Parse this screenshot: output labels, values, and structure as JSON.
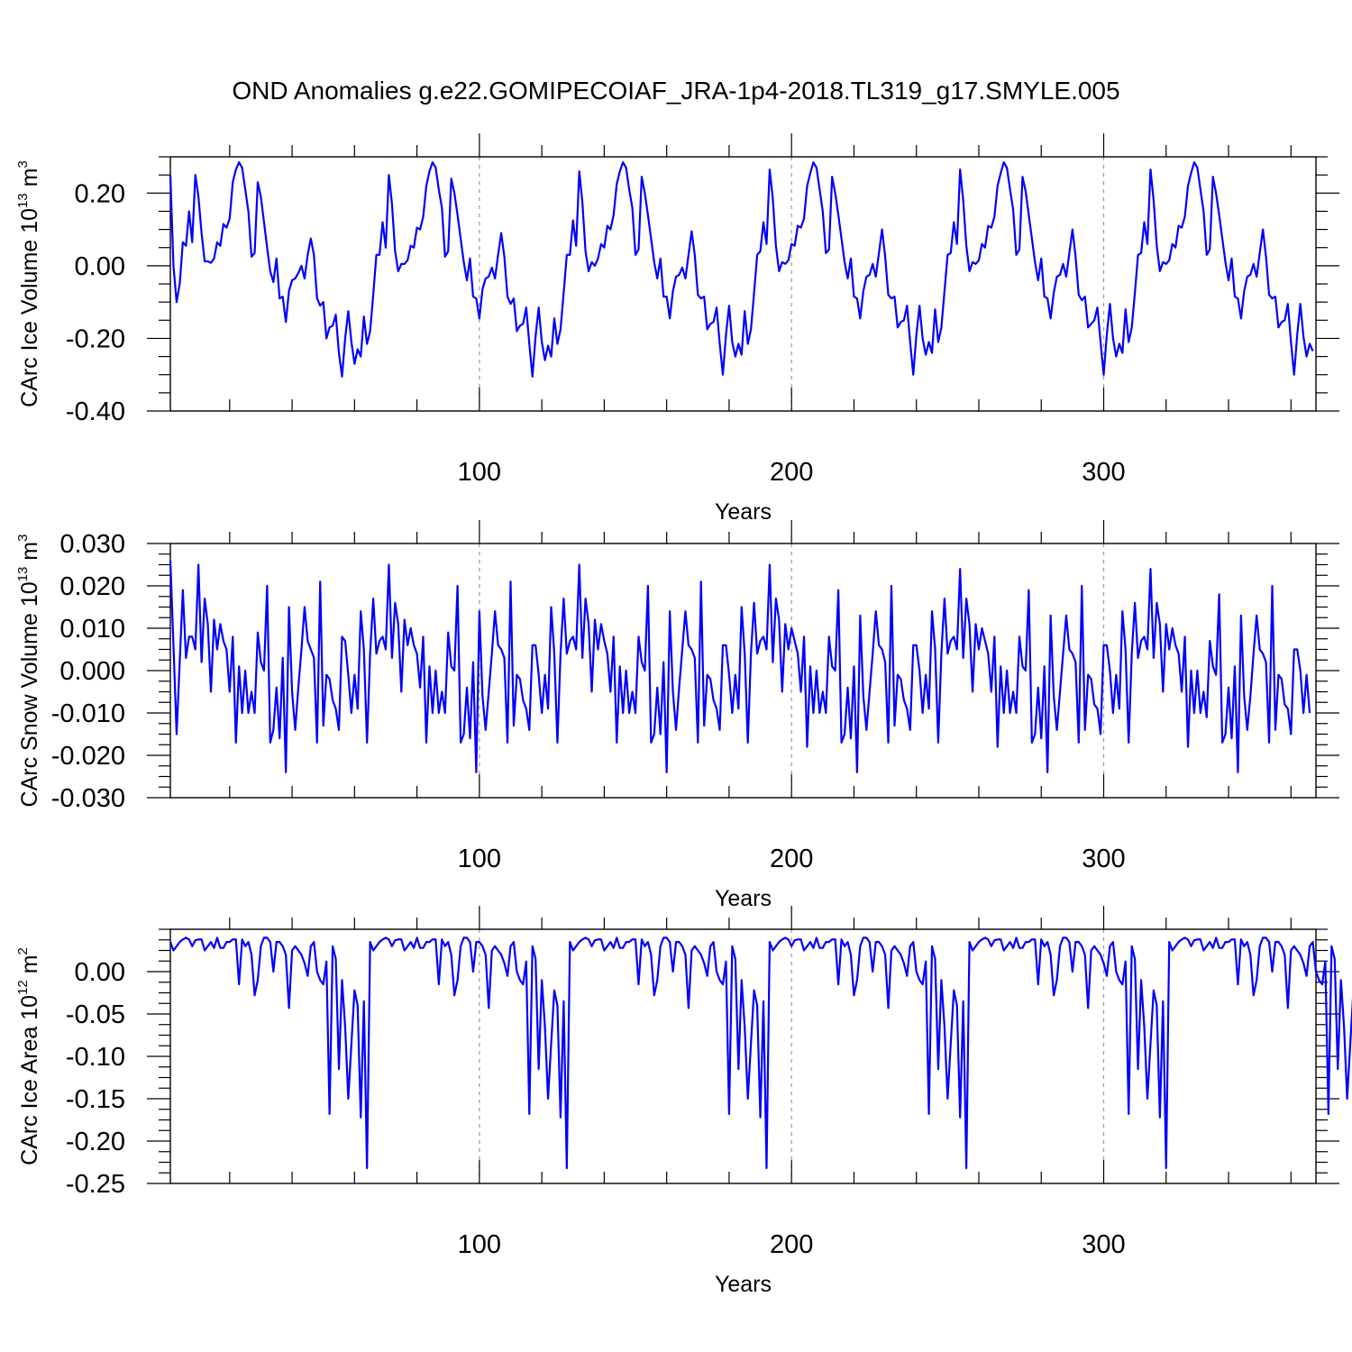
{
  "title": "OND Anomalies g.e22.GOMIPECOIAF_JRA-1p4-2018.TL319_g17.SMYLE.005",
  "colors": {
    "series": "#0000ff",
    "grid": "#999999",
    "axis": "#000000"
  },
  "chart_data": [
    {
      "type": "line",
      "name": "ice-volume",
      "ylabel_main": "CArc Ice Volume 10",
      "ylabel_sup": "13",
      "ylabel_tail": " m",
      "ylabel_sup2": "3",
      "xlabel": "Years",
      "xlim": [
        1,
        368
      ],
      "ylim": [
        -0.4,
        0.3
      ],
      "yticks": [
        -0.4,
        -0.2,
        0.0,
        0.2
      ],
      "yticklabels": [
        "-0.40",
        "-0.20",
        "0.00",
        "0.20"
      ],
      "yminor": 0.05,
      "xticks": [
        100,
        200,
        300
      ],
      "xticklabels": [
        "100",
        "200",
        "300"
      ],
      "xminor": 20,
      "grid_x": [
        100,
        200,
        300
      ],
      "values": [
        0.25,
        0.0,
        -0.1,
        -0.05,
        0.065,
        0.055,
        0.15,
        0.065,
        0.25,
        0.19,
        0.09,
        0.012,
        0.012,
        0.008,
        0.02,
        0.065,
        0.055,
        0.115,
        0.105,
        0.13,
        0.23,
        0.265,
        0.285,
        0.27,
        0.21,
        0.15,
        0.025,
        0.035,
        0.23,
        0.19,
        0.12,
        0.05,
        -0.015,
        -0.045,
        0.02,
        -0.09,
        -0.085,
        -0.155,
        -0.07,
        -0.04,
        -0.035,
        -0.02,
        0.0,
        -0.035,
        0.03,
        0.075,
        0.03,
        -0.09,
        -0.11,
        -0.1,
        -0.2,
        -0.17,
        -0.165,
        -0.135,
        -0.24,
        -0.305,
        -0.2,
        -0.125,
        -0.21,
        -0.27,
        -0.23,
        -0.25,
        -0.14,
        -0.215,
        -0.18,
        -0.08,
        0.03,
        0.03,
        0.12,
        0.05,
        0.25,
        0.17,
        0.04,
        -0.015,
        0.005,
        0.005,
        0.015,
        0.055,
        0.05,
        0.105,
        0.1,
        0.135,
        0.22,
        0.26,
        0.285,
        0.27,
        0.21,
        0.16,
        0.025,
        0.04,
        0.24,
        0.2,
        0.14,
        0.075,
        0.01,
        -0.04,
        0.02,
        -0.085,
        -0.09,
        -0.145,
        -0.065,
        -0.035,
        -0.03,
        -0.005,
        -0.035,
        0.03,
        0.09,
        0.025,
        -0.085,
        -0.105,
        -0.09,
        -0.18,
        -0.165,
        -0.16,
        -0.115,
        -0.215,
        -0.305,
        -0.195,
        -0.115,
        -0.21,
        -0.26,
        -0.22,
        -0.25,
        -0.145,
        -0.215,
        -0.175,
        -0.075,
        0.03,
        0.03,
        0.125,
        0.055,
        0.26,
        0.175,
        0.04,
        -0.015,
        0.01,
        0.0,
        0.02,
        0.06,
        0.05,
        0.11,
        0.1,
        0.14,
        0.225,
        0.26,
        0.285,
        0.27,
        0.21,
        0.16,
        0.03,
        0.045,
        0.245,
        0.2,
        0.14,
        0.075,
        0.01,
        -0.035,
        0.02,
        -0.085,
        -0.085,
        -0.145,
        -0.07,
        -0.03,
        -0.025,
        -0.005,
        -0.035,
        0.03,
        0.095,
        0.03,
        -0.08,
        -0.09,
        -0.085,
        -0.175,
        -0.16,
        -0.155,
        -0.115,
        -0.215,
        -0.3,
        -0.19,
        -0.11,
        -0.21,
        -0.25,
        -0.215,
        -0.245,
        -0.125,
        -0.215,
        -0.175,
        -0.075,
        0.03,
        0.04,
        0.12,
        0.06,
        0.265,
        0.185,
        0.055,
        -0.015,
        0.01,
        0.005,
        0.015,
        0.06,
        0.055,
        0.11,
        0.105,
        0.13,
        0.22,
        0.255,
        0.285,
        0.27,
        0.21,
        0.15,
        0.035,
        0.045,
        0.245,
        0.2,
        0.14,
        0.075,
        0.01,
        -0.035,
        0.02,
        -0.085,
        -0.09,
        -0.145,
        -0.07,
        -0.03,
        -0.025,
        0.005,
        -0.03,
        0.035,
        0.1,
        0.025,
        -0.08,
        -0.09,
        -0.085,
        -0.17,
        -0.155,
        -0.15,
        -0.11,
        -0.21,
        -0.3,
        -0.19,
        -0.11,
        -0.2,
        -0.245,
        -0.21,
        -0.24,
        -0.12,
        -0.21,
        -0.17,
        -0.07,
        0.03,
        0.035,
        0.12,
        0.06,
        0.265,
        0.18,
        0.055,
        -0.015,
        0.01,
        0.005,
        0.015,
        0.06,
        0.05,
        0.11,
        0.105,
        0.135,
        0.22,
        0.255,
        0.285,
        0.27,
        0.21,
        0.155,
        0.03,
        0.045,
        0.245,
        0.205,
        0.14,
        0.075,
        0.01,
        -0.04,
        0.02,
        -0.085,
        -0.09,
        -0.145,
        -0.075,
        -0.03,
        -0.025,
        0.005,
        -0.03,
        0.035,
        0.1,
        0.025,
        -0.08,
        -0.095,
        -0.085,
        -0.17,
        -0.16,
        -0.15,
        -0.115,
        -0.21,
        -0.3,
        -0.19,
        -0.105,
        -0.2,
        -0.25,
        -0.215,
        -0.24,
        -0.12,
        -0.21,
        -0.17,
        -0.075,
        0.03,
        0.035,
        0.12,
        0.06,
        0.265,
        0.18,
        0.055,
        -0.015,
        0.01,
        0.005,
        0.015,
        0.06,
        0.05,
        0.11,
        0.105,
        0.135,
        0.22,
        0.255,
        0.285,
        0.27,
        0.21,
        0.15,
        0.03,
        0.045,
        0.245,
        0.2,
        0.14,
        0.075,
        0.01,
        -0.04,
        0.02,
        -0.085,
        -0.09,
        -0.145,
        -0.07,
        -0.03,
        -0.025,
        0.005,
        -0.03,
        0.035,
        0.1,
        0.025,
        -0.08,
        -0.09,
        -0.085,
        -0.17,
        -0.155,
        -0.15,
        -0.105,
        -0.21,
        -0.3,
        -0.19,
        -0.105,
        -0.195,
        -0.25,
        -0.215,
        -0.235
      ]
    },
    {
      "type": "line",
      "name": "snow-volume",
      "ylabel_main": "CArc Snow Volume 10",
      "ylabel_sup": "13",
      "ylabel_tail": " m",
      "ylabel_sup2": "3",
      "xlabel": "Years",
      "xlim": [
        1,
        368
      ],
      "ylim": [
        -0.03,
        0.03
      ],
      "yticks": [
        -0.03,
        -0.02,
        -0.01,
        0.0,
        0.01,
        0.02,
        0.03
      ],
      "yticklabels": [
        "-0.030",
        "-0.020",
        "-0.010",
        "0.000",
        "0.010",
        "0.020",
        "0.030"
      ],
      "yminor": 0.0025,
      "xticks": [
        100,
        200,
        300
      ],
      "xticklabels": [
        "100",
        "200",
        "300"
      ],
      "xminor": 20,
      "grid_x": [
        100,
        200,
        300
      ],
      "values": [
        0.026,
        0.006,
        -0.015,
        0.002,
        0.019,
        0.003,
        0.008,
        0.008,
        0.005,
        0.025,
        0.002,
        0.017,
        0.011,
        -0.005,
        0.012,
        0.005,
        0.011,
        0.007,
        0.005,
        -0.005,
        0.008,
        -0.017,
        0.001,
        -0.01,
        0.0,
        -0.01,
        -0.005,
        -0.01,
        0.009,
        0.002,
        0.0,
        0.02,
        -0.017,
        -0.014,
        -0.004,
        -0.016,
        0.003,
        -0.024,
        0.015,
        -0.005,
        -0.014,
        -0.004,
        0.005,
        0.015,
        0.007,
        0.005,
        0.003,
        -0.017,
        0.021,
        -0.013,
        -0.001,
        -0.002,
        -0.007,
        -0.009,
        -0.014,
        0.008,
        0.007,
        -0.001,
        -0.01,
        -0.001,
        -0.009,
        0.014,
        0.005,
        -0.017,
        0.004,
        0.017,
        0.004,
        0.007,
        0.008,
        0.005,
        0.025,
        0.003,
        0.016,
        0.011,
        -0.005,
        0.012,
        0.006,
        0.01,
        0.006,
        0.004,
        -0.004,
        0.008,
        -0.017,
        0.001,
        -0.01,
        0.0,
        -0.01,
        -0.005,
        -0.01,
        0.009,
        0.001,
        0.0,
        0.02,
        -0.017,
        -0.015,
        -0.004,
        -0.016,
        0.002,
        -0.024,
        0.014,
        -0.006,
        -0.014,
        -0.005,
        0.004,
        0.014,
        0.006,
        0.005,
        0.003,
        -0.017,
        0.021,
        -0.013,
        -0.001,
        -0.002,
        -0.007,
        -0.009,
        -0.014,
        0.006,
        0.006,
        -0.001,
        -0.01,
        -0.001,
        -0.009,
        0.015,
        0.004,
        -0.017,
        0.004,
        0.017,
        0.004,
        0.007,
        0.008,
        0.005,
        0.025,
        0.003,
        0.017,
        0.011,
        -0.005,
        0.012,
        0.005,
        0.011,
        0.007,
        0.004,
        -0.005,
        0.008,
        -0.017,
        0.001,
        -0.01,
        0.0,
        -0.01,
        -0.005,
        -0.01,
        0.008,
        0.002,
        0.0,
        0.02,
        -0.017,
        -0.015,
        -0.004,
        -0.015,
        0.002,
        -0.024,
        0.014,
        -0.005,
        -0.014,
        -0.004,
        0.005,
        0.014,
        0.006,
        0.005,
        0.003,
        -0.017,
        0.021,
        -0.013,
        -0.001,
        -0.002,
        -0.007,
        -0.009,
        -0.014,
        0.006,
        0.006,
        -0.001,
        -0.01,
        -0.001,
        -0.009,
        0.015,
        0.004,
        -0.017,
        0.004,
        0.016,
        0.004,
        0.007,
        0.008,
        0.005,
        0.025,
        0.002,
        0.017,
        0.012,
        -0.005,
        0.011,
        0.005,
        0.01,
        0.007,
        0.004,
        -0.005,
        0.008,
        -0.018,
        0.001,
        -0.01,
        0.0,
        -0.01,
        -0.005,
        -0.01,
        0.008,
        0.001,
        0.0,
        0.019,
        -0.017,
        -0.015,
        -0.004,
        -0.016,
        0.001,
        -0.024,
        0.013,
        -0.006,
        -0.014,
        -0.005,
        0.004,
        0.014,
        0.006,
        0.005,
        0.002,
        -0.017,
        0.02,
        -0.013,
        -0.001,
        -0.002,
        -0.007,
        -0.009,
        -0.014,
        0.006,
        0.006,
        0.0,
        -0.01,
        -0.001,
        -0.009,
        0.014,
        0.005,
        -0.017,
        0.004,
        0.017,
        0.004,
        0.007,
        0.008,
        0.005,
        0.024,
        0.003,
        0.017,
        0.011,
        -0.005,
        0.011,
        0.005,
        0.01,
        0.007,
        0.004,
        -0.005,
        0.008,
        -0.018,
        0.001,
        -0.01,
        0.0,
        -0.01,
        -0.005,
        -0.01,
        0.008,
        0.001,
        0.0,
        0.019,
        -0.017,
        -0.015,
        -0.004,
        -0.016,
        0.001,
        -0.024,
        0.013,
        -0.006,
        -0.014,
        -0.005,
        0.004,
        0.013,
        0.005,
        0.004,
        0.002,
        -0.017,
        0.02,
        -0.014,
        -0.001,
        -0.002,
        -0.008,
        -0.009,
        -0.015,
        0.006,
        0.006,
        0.0,
        -0.01,
        -0.001,
        -0.009,
        0.014,
        0.005,
        -0.017,
        0.004,
        0.016,
        0.003,
        0.007,
        0.008,
        0.005,
        0.024,
        0.003,
        0.016,
        0.011,
        -0.005,
        0.011,
        0.005,
        0.01,
        0.006,
        0.004,
        -0.005,
        0.008,
        -0.018,
        0.0,
        -0.01,
        0.0,
        -0.01,
        -0.005,
        -0.011,
        0.007,
        0.001,
        -0.001,
        0.018,
        -0.017,
        -0.015,
        -0.004,
        -0.016,
        0.001,
        -0.024,
        0.013,
        -0.006,
        -0.014,
        -0.006,
        0.004,
        0.013,
        0.005,
        0.004,
        0.002,
        -0.017,
        0.02,
        -0.014,
        -0.001,
        -0.002,
        -0.008,
        -0.009,
        -0.015,
        0.005,
        0.005,
        0.0,
        -0.01,
        -0.001,
        -0.01
      ]
    },
    {
      "type": "line",
      "name": "ice-area",
      "ylabel_main": "CArc Ice Area 10",
      "ylabel_sup": "12",
      "ylabel_tail": " m",
      "ylabel_sup2": "2",
      "xlabel": "Years",
      "xlim": [
        1,
        368
      ],
      "ylim": [
        -0.25,
        0.05
      ],
      "yticks": [
        -0.25,
        -0.2,
        -0.15,
        -0.1,
        -0.05,
        0.0
      ],
      "yticklabels": [
        "-0.25",
        "-0.20",
        "-0.15",
        "-0.10",
        "-0.05",
        "0.00"
      ],
      "yminor": 0.0125,
      "xticks": [
        100,
        200,
        300
      ],
      "xticklabels": [
        "100",
        "200",
        "300"
      ],
      "xminor": 20,
      "grid_x": [
        100,
        200,
        300
      ],
      "values": [
        0.035,
        0.025,
        0.03,
        0.035,
        0.038,
        0.04,
        0.038,
        0.03,
        0.037,
        0.038,
        0.038,
        0.025,
        0.03,
        0.035,
        0.028,
        0.04,
        0.028,
        0.028,
        0.035,
        0.035,
        0.038,
        0.038,
        -0.015,
        0.038,
        0.03,
        0.035,
        0.02,
        -0.028,
        -0.01,
        0.03,
        0.04,
        0.04,
        0.035,
        0.0,
        0.035,
        0.035,
        0.03,
        0.02,
        -0.043,
        0.025,
        0.03,
        0.025,
        0.02,
        0.01,
        -0.005,
        0.03,
        0.035,
        0.0,
        -0.01,
        -0.015,
        0.012,
        -0.168,
        0.03,
        0.015,
        -0.115,
        -0.01,
        -0.065,
        -0.15,
        -0.085,
        -0.022,
        -0.04,
        -0.172,
        -0.035,
        -0.232,
        0.035,
        0.025,
        0.03,
        0.035,
        0.038,
        0.04,
        0.038,
        0.03,
        0.037,
        0.038,
        0.038,
        0.025,
        0.03,
        0.035,
        0.028,
        0.04,
        0.028,
        0.028,
        0.035,
        0.035,
        0.038,
        0.038,
        -0.015,
        0.038,
        0.03,
        0.035,
        0.02,
        -0.028,
        -0.01,
        0.03,
        0.04,
        0.04,
        0.035,
        0.0,
        0.035,
        0.035,
        0.03,
        0.02,
        -0.043,
        0.025,
        0.03,
        0.025,
        0.02,
        0.01,
        -0.005,
        0.03,
        0.035,
        0.0,
        -0.01,
        -0.015,
        0.012,
        -0.168,
        0.03,
        0.015,
        -0.115,
        -0.01,
        -0.065,
        -0.15,
        -0.085,
        -0.022,
        -0.04,
        -0.172,
        -0.035,
        -0.232,
        0.035,
        0.025,
        0.03,
        0.035,
        0.038,
        0.04,
        0.038,
        0.03,
        0.037,
        0.038,
        0.038,
        0.025,
        0.03,
        0.035,
        0.028,
        0.04,
        0.028,
        0.028,
        0.035,
        0.035,
        0.038,
        0.038,
        -0.015,
        0.038,
        0.03,
        0.035,
        0.02,
        -0.028,
        -0.01,
        0.03,
        0.04,
        0.04,
        0.035,
        0.0,
        0.035,
        0.035,
        0.03,
        0.02,
        -0.043,
        0.025,
        0.03,
        0.025,
        0.02,
        0.01,
        -0.005,
        0.03,
        0.035,
        0.0,
        -0.01,
        -0.015,
        0.012,
        -0.168,
        0.03,
        0.015,
        -0.115,
        -0.01,
        -0.065,
        -0.15,
        -0.085,
        -0.022,
        -0.04,
        -0.172,
        -0.035,
        -0.232,
        0.035,
        0.025,
        0.03,
        0.035,
        0.038,
        0.04,
        0.038,
        0.03,
        0.037,
        0.038,
        0.038,
        0.025,
        0.03,
        0.035,
        0.028,
        0.04,
        0.028,
        0.028,
        0.035,
        0.035,
        0.038,
        0.038,
        -0.015,
        0.038,
        0.03,
        0.035,
        0.02,
        -0.028,
        -0.01,
        0.03,
        0.04,
        0.04,
        0.035,
        0.0,
        0.035,
        0.035,
        0.03,
        0.02,
        -0.043,
        0.025,
        0.03,
        0.025,
        0.02,
        0.01,
        -0.005,
        0.03,
        0.035,
        0.0,
        -0.01,
        -0.015,
        0.012,
        -0.168,
        0.03,
        0.015,
        -0.115,
        -0.01,
        -0.065,
        -0.15,
        -0.085,
        -0.022,
        -0.04,
        -0.172,
        -0.035,
        -0.232,
        0.035,
        0.025,
        0.03,
        0.035,
        0.038,
        0.04,
        0.038,
        0.03,
        0.037,
        0.038,
        0.038,
        0.025,
        0.03,
        0.035,
        0.028,
        0.04,
        0.028,
        0.028,
        0.035,
        0.035,
        0.038,
        0.038,
        -0.015,
        0.038,
        0.03,
        0.035,
        0.02,
        -0.028,
        -0.01,
        0.03,
        0.04,
        0.04,
        0.035,
        0.0,
        0.035,
        0.035,
        0.03,
        0.02,
        -0.043,
        0.025,
        0.03,
        0.025,
        0.02,
        0.01,
        -0.005,
        0.03,
        0.035,
        0.0,
        -0.01,
        -0.015,
        0.012,
        -0.168,
        0.03,
        0.015,
        -0.115,
        -0.01,
        -0.065,
        -0.15,
        -0.085,
        -0.022,
        -0.04,
        -0.172,
        -0.035,
        -0.232,
        0.035,
        0.025,
        0.03,
        0.035,
        0.038,
        0.04,
        0.038,
        0.03,
        0.037,
        0.038,
        0.038,
        0.025,
        0.03,
        0.035,
        0.028,
        0.04,
        0.028,
        0.028,
        0.035,
        0.035,
        0.038,
        0.038,
        -0.015,
        0.038,
        0.03,
        0.035,
        0.02,
        -0.028,
        -0.01,
        0.03,
        0.04,
        0.04,
        0.035,
        0.0,
        0.035,
        0.035,
        0.03,
        0.02,
        -0.043,
        0.025,
        0.03,
        0.025,
        0.02,
        0.01,
        -0.005,
        0.03,
        0.035,
        0.0,
        -0.01,
        -0.015,
        0.012,
        -0.168,
        0.03,
        0.015,
        -0.115,
        -0.01,
        -0.065,
        -0.15,
        -0.085,
        -0.022,
        -0.04,
        -0.172,
        -0.035,
        -0.232
      ]
    }
  ]
}
